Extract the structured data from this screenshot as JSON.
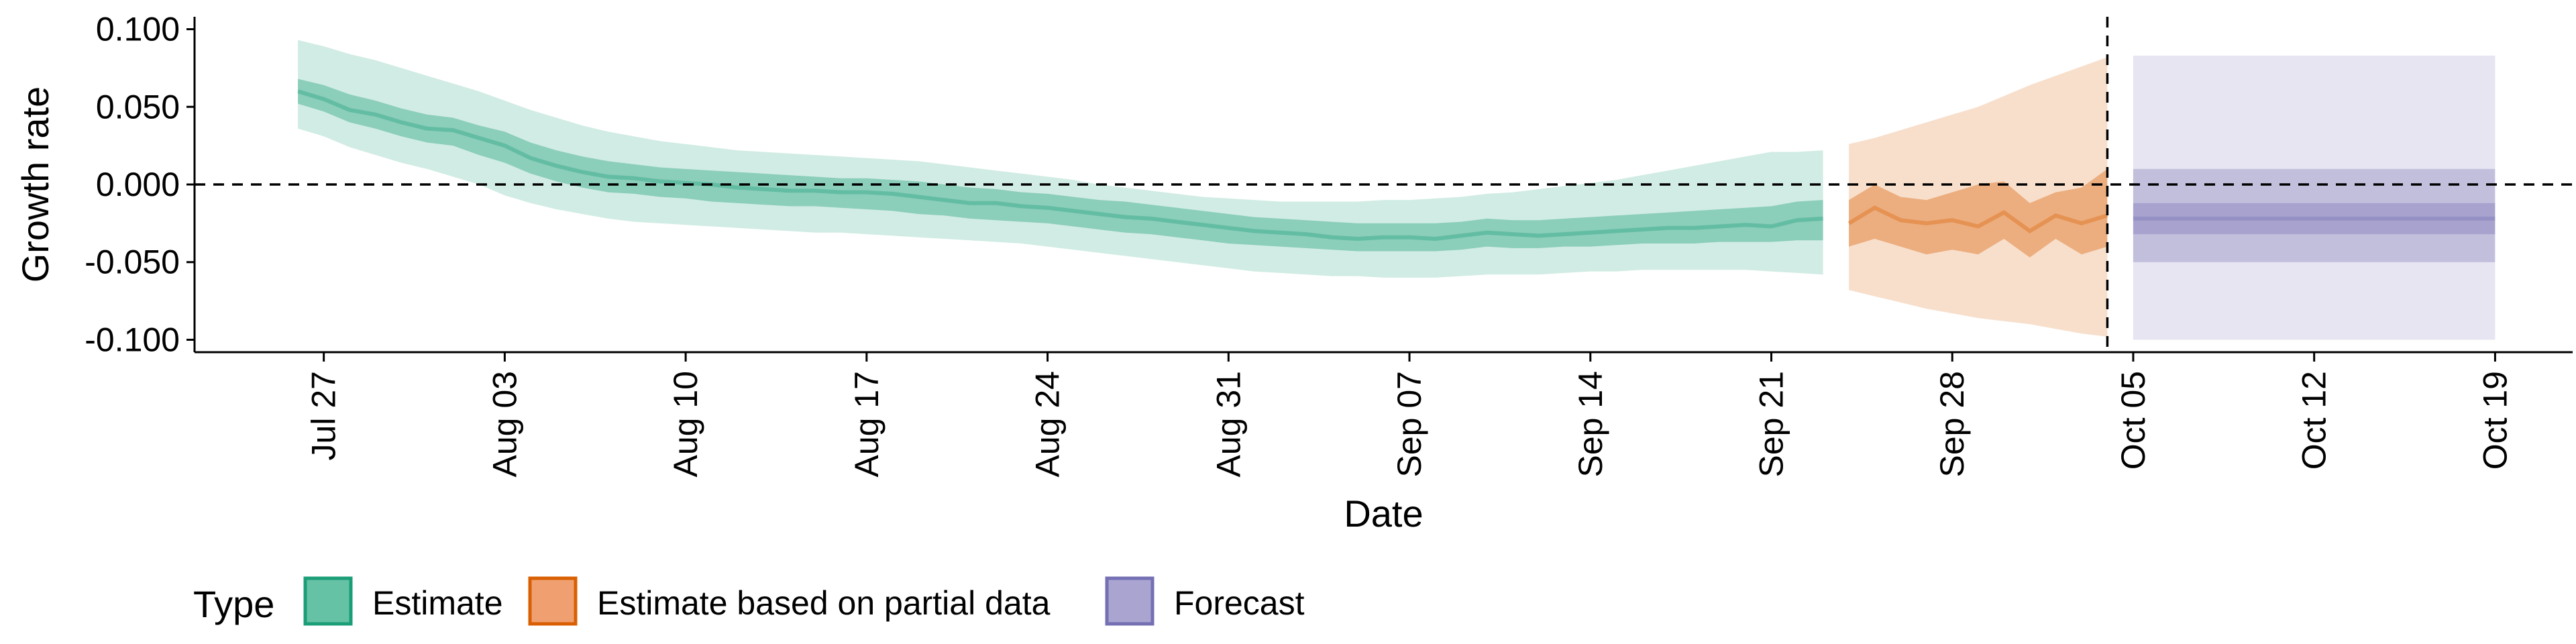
{
  "chart_data": {
    "type": "area",
    "title": "",
    "xlabel": "Date",
    "ylabel": "Growth rate",
    "ylim": [
      -0.108,
      0.108
    ],
    "xlim": [
      "2020-07-22",
      "2020-10-22"
    ],
    "y_ticks": [
      {
        "value": 0.1,
        "label": "0.100"
      },
      {
        "value": 0.05,
        "label": "0.050"
      },
      {
        "value": 0.0,
        "label": "0.000"
      },
      {
        "value": -0.05,
        "label": "-0.050"
      },
      {
        "value": -0.1,
        "label": "-0.100"
      }
    ],
    "x_ticks": [
      {
        "date": "2020-07-27",
        "label": "Jul 27"
      },
      {
        "date": "2020-08-03",
        "label": "Aug 03"
      },
      {
        "date": "2020-08-10",
        "label": "Aug 10"
      },
      {
        "date": "2020-08-17",
        "label": "Aug 17"
      },
      {
        "date": "2020-08-24",
        "label": "Aug 24"
      },
      {
        "date": "2020-08-31",
        "label": "Aug 31"
      },
      {
        "date": "2020-09-07",
        "label": "Sep 07"
      },
      {
        "date": "2020-09-14",
        "label": "Sep 14"
      },
      {
        "date": "2020-09-21",
        "label": "Sep 21"
      },
      {
        "date": "2020-09-28",
        "label": "Sep 28"
      },
      {
        "date": "2020-10-05",
        "label": "Oct 05"
      },
      {
        "date": "2020-10-12",
        "label": "Oct 12"
      },
      {
        "date": "2020-10-19",
        "label": "Oct 19"
      }
    ],
    "horizontal_reference_line": 0.0,
    "vertical_reference_line": "2020-10-04",
    "grid": false,
    "legend": {
      "title": "Type",
      "position": "bottom",
      "entries": [
        {
          "label": "Estimate",
          "fill": "#66c2a5",
          "stroke": "#1b9e77"
        },
        {
          "label": "Estimate based on partial data",
          "fill": "#f0a070",
          "stroke": "#d95f02"
        },
        {
          "label": "Forecast",
          "fill": "#a9a5d0",
          "stroke": "#7570b3"
        }
      ]
    },
    "series": [
      {
        "name": "Estimate",
        "colors": {
          "outer": "#1b9e77",
          "inner": "#1b9e77",
          "median": "#1b9e77"
        },
        "dates": [
          "2020-07-26",
          "2020-07-27",
          "2020-07-28",
          "2020-07-29",
          "2020-07-30",
          "2020-07-31",
          "2020-08-01",
          "2020-08-02",
          "2020-08-03",
          "2020-08-04",
          "2020-08-05",
          "2020-08-06",
          "2020-08-07",
          "2020-08-08",
          "2020-08-09",
          "2020-08-10",
          "2020-08-11",
          "2020-08-12",
          "2020-08-13",
          "2020-08-14",
          "2020-08-15",
          "2020-08-16",
          "2020-08-17",
          "2020-08-18",
          "2020-08-19",
          "2020-08-20",
          "2020-08-21",
          "2020-08-22",
          "2020-08-23",
          "2020-08-24",
          "2020-08-25",
          "2020-08-26",
          "2020-08-27",
          "2020-08-28",
          "2020-08-29",
          "2020-08-30",
          "2020-08-31",
          "2020-09-01",
          "2020-09-02",
          "2020-09-03",
          "2020-09-04",
          "2020-09-05",
          "2020-09-06",
          "2020-09-07",
          "2020-09-08",
          "2020-09-09",
          "2020-09-10",
          "2020-09-11",
          "2020-09-12",
          "2020-09-13",
          "2020-09-14",
          "2020-09-15",
          "2020-09-16",
          "2020-09-17",
          "2020-09-18",
          "2020-09-19",
          "2020-09-20",
          "2020-09-21",
          "2020-09-22",
          "2020-09-23"
        ],
        "median": [
          0.06,
          0.055,
          0.048,
          0.045,
          0.04,
          0.036,
          0.035,
          0.03,
          0.025,
          0.017,
          0.012,
          0.008,
          0.005,
          0.004,
          0.002,
          0.001,
          0.0,
          -0.002,
          -0.003,
          -0.004,
          -0.004,
          -0.005,
          -0.005,
          -0.006,
          -0.008,
          -0.01,
          -0.012,
          -0.012,
          -0.014,
          -0.015,
          -0.017,
          -0.019,
          -0.021,
          -0.022,
          -0.024,
          -0.026,
          -0.028,
          -0.03,
          -0.031,
          -0.032,
          -0.034,
          -0.035,
          -0.034,
          -0.034,
          -0.035,
          -0.033,
          -0.031,
          -0.032,
          -0.033,
          -0.032,
          -0.031,
          -0.03,
          -0.029,
          -0.028,
          -0.028,
          -0.027,
          -0.026,
          -0.027,
          -0.023,
          -0.022
        ],
        "inner_low": [
          0.052,
          0.047,
          0.04,
          0.036,
          0.031,
          0.027,
          0.025,
          0.019,
          0.014,
          0.007,
          0.002,
          -0.002,
          -0.005,
          -0.006,
          -0.008,
          -0.009,
          -0.011,
          -0.012,
          -0.013,
          -0.014,
          -0.014,
          -0.015,
          -0.016,
          -0.017,
          -0.019,
          -0.02,
          -0.022,
          -0.023,
          -0.024,
          -0.025,
          -0.027,
          -0.029,
          -0.031,
          -0.032,
          -0.034,
          -0.036,
          -0.038,
          -0.039,
          -0.04,
          -0.041,
          -0.042,
          -0.043,
          -0.043,
          -0.043,
          -0.043,
          -0.042,
          -0.04,
          -0.041,
          -0.041,
          -0.04,
          -0.04,
          -0.039,
          -0.038,
          -0.038,
          -0.038,
          -0.037,
          -0.037,
          -0.037,
          -0.036,
          -0.036
        ],
        "inner_high": [
          0.068,
          0.064,
          0.058,
          0.054,
          0.049,
          0.045,
          0.043,
          0.038,
          0.034,
          0.027,
          0.022,
          0.018,
          0.015,
          0.013,
          0.011,
          0.01,
          0.009,
          0.008,
          0.007,
          0.006,
          0.005,
          0.004,
          0.004,
          0.003,
          0.002,
          0.0,
          -0.002,
          -0.003,
          -0.005,
          -0.006,
          -0.008,
          -0.01,
          -0.011,
          -0.013,
          -0.015,
          -0.017,
          -0.019,
          -0.021,
          -0.022,
          -0.023,
          -0.024,
          -0.025,
          -0.025,
          -0.025,
          -0.025,
          -0.024,
          -0.022,
          -0.023,
          -0.023,
          -0.022,
          -0.021,
          -0.02,
          -0.019,
          -0.018,
          -0.017,
          -0.016,
          -0.015,
          -0.014,
          -0.011,
          -0.01
        ],
        "outer_low": [
          0.036,
          0.031,
          0.024,
          0.019,
          0.014,
          0.01,
          0.005,
          0.0,
          -0.007,
          -0.012,
          -0.016,
          -0.019,
          -0.022,
          -0.024,
          -0.025,
          -0.026,
          -0.027,
          -0.028,
          -0.029,
          -0.03,
          -0.031,
          -0.031,
          -0.032,
          -0.033,
          -0.034,
          -0.035,
          -0.036,
          -0.037,
          -0.038,
          -0.04,
          -0.042,
          -0.044,
          -0.046,
          -0.048,
          -0.05,
          -0.052,
          -0.054,
          -0.056,
          -0.057,
          -0.058,
          -0.059,
          -0.059,
          -0.06,
          -0.06,
          -0.06,
          -0.059,
          -0.058,
          -0.058,
          -0.058,
          -0.057,
          -0.056,
          -0.056,
          -0.055,
          -0.055,
          -0.055,
          -0.055,
          -0.055,
          -0.056,
          -0.057,
          -0.058
        ],
        "outer_high": [
          0.093,
          0.089,
          0.084,
          0.08,
          0.075,
          0.07,
          0.065,
          0.06,
          0.054,
          0.048,
          0.043,
          0.038,
          0.034,
          0.031,
          0.028,
          0.026,
          0.024,
          0.022,
          0.021,
          0.02,
          0.019,
          0.018,
          0.017,
          0.016,
          0.015,
          0.013,
          0.011,
          0.009,
          0.007,
          0.005,
          0.003,
          0.0,
          -0.002,
          -0.004,
          -0.006,
          -0.008,
          -0.009,
          -0.01,
          -0.011,
          -0.011,
          -0.011,
          -0.011,
          -0.01,
          -0.01,
          -0.009,
          -0.008,
          -0.006,
          -0.005,
          -0.003,
          -0.001,
          0.001,
          0.003,
          0.006,
          0.009,
          0.012,
          0.015,
          0.018,
          0.021,
          0.021,
          0.022
        ]
      },
      {
        "name": "Estimate based on partial data",
        "colors": {
          "outer": "#d95f02",
          "inner": "#d95f02",
          "median": "#d95f02"
        },
        "dates": [
          "2020-09-24",
          "2020-09-25",
          "2020-09-26",
          "2020-09-27",
          "2020-09-28",
          "2020-09-29",
          "2020-09-30",
          "2020-10-01",
          "2020-10-02",
          "2020-10-03",
          "2020-10-04"
        ],
        "median": [
          -0.025,
          -0.015,
          -0.023,
          -0.025,
          -0.023,
          -0.027,
          -0.018,
          -0.03,
          -0.02,
          -0.025,
          -0.02
        ],
        "inner_low": [
          -0.04,
          -0.035,
          -0.04,
          -0.045,
          -0.042,
          -0.045,
          -0.035,
          -0.047,
          -0.035,
          -0.045,
          -0.04
        ],
        "inner_high": [
          -0.01,
          0.0,
          -0.008,
          -0.01,
          -0.005,
          0.0,
          0.002,
          -0.012,
          -0.005,
          -0.002,
          0.01
        ],
        "outer_low": [
          -0.068,
          -0.072,
          -0.076,
          -0.08,
          -0.083,
          -0.086,
          -0.088,
          -0.09,
          -0.093,
          -0.096,
          -0.098
        ],
        "outer_high": [
          0.026,
          0.03,
          0.035,
          0.04,
          0.045,
          0.05,
          0.057,
          0.064,
          0.07,
          0.076,
          0.082
        ]
      },
      {
        "name": "Forecast",
        "colors": {
          "outer": "#7570b3",
          "inner": "#7570b3",
          "median": "#7570b3"
        },
        "dates": [
          "2020-10-05",
          "2020-10-19"
        ],
        "median": [
          -0.022,
          -0.022
        ],
        "inner_low": [
          -0.032,
          -0.032
        ],
        "inner_high": [
          -0.012,
          -0.012
        ],
        "mid_low": [
          -0.05,
          -0.05
        ],
        "mid_high": [
          0.01,
          0.01
        ],
        "outer_low": [
          -0.1,
          -0.1
        ],
        "outer_high": [
          0.083,
          0.083
        ]
      }
    ]
  }
}
